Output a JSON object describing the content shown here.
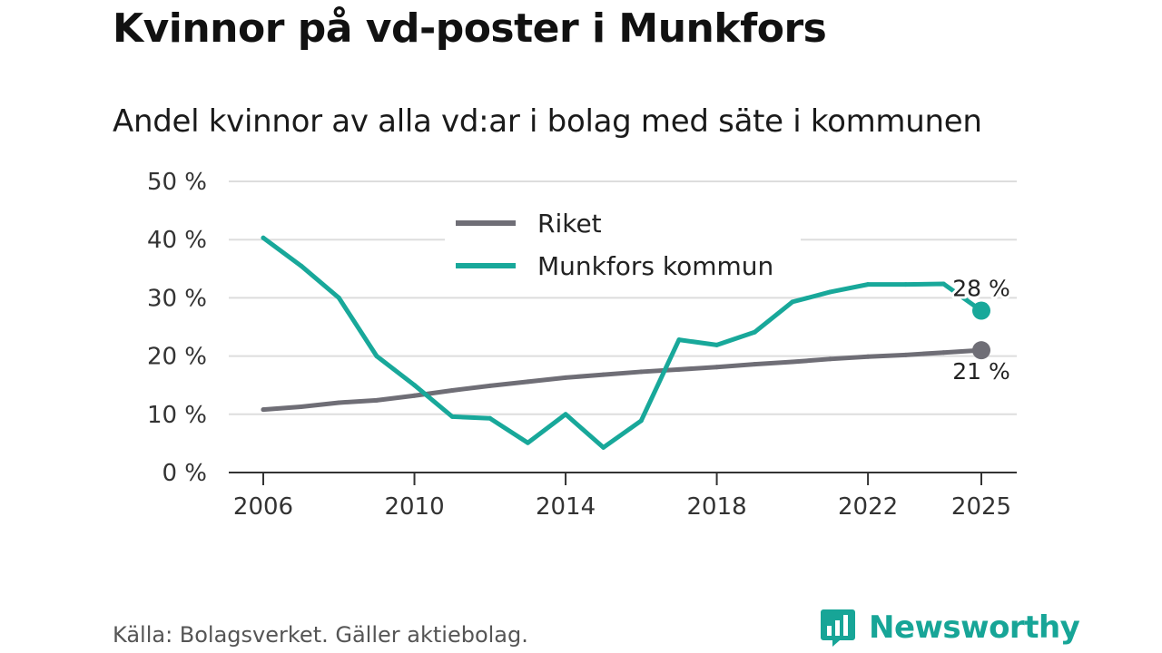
{
  "title": "Kvinnor på vd-poster i Munkfors",
  "subtitle": "Andel kvinnor av alla vd:ar i bolag med säte i kommunen",
  "source": "Källa: Bolagsverket. Gäller aktiebolag.",
  "brand": {
    "name": "Newsworthy",
    "logo_icon": "bar-chart-speech-bubble-icon"
  },
  "colors": {
    "riket": "#6f6e76",
    "munkfors": "#18a89a",
    "grid": "#dddddd",
    "axis": "#333333",
    "brand": "#17a597"
  },
  "chart_data": {
    "type": "line",
    "x": [
      2006,
      2007,
      2008,
      2009,
      2010,
      2011,
      2012,
      2013,
      2014,
      2015,
      2016,
      2017,
      2018,
      2019,
      2020,
      2021,
      2022,
      2023,
      2024,
      2025
    ],
    "series": [
      {
        "name": "Riket",
        "key": "riket",
        "values": [
          10.8,
          11.3,
          12.0,
          12.4,
          13.2,
          14.1,
          14.9,
          15.6,
          16.3,
          16.8,
          17.3,
          17.7,
          18.1,
          18.6,
          19.0,
          19.5,
          19.9,
          20.2,
          20.6,
          21.0
        ],
        "end_label": "21 %"
      },
      {
        "name": "Munkfors kommun",
        "key": "munkfors",
        "values": [
          40.3,
          35.5,
          30.0,
          20.0,
          15.0,
          9.6,
          9.3,
          5.1,
          10.0,
          4.3,
          8.9,
          22.8,
          21.9,
          24.1,
          29.3,
          31.0,
          32.3,
          32.3,
          32.4,
          27.8
        ],
        "end_label": "28 %"
      }
    ],
    "xticks": [
      2006,
      2010,
      2014,
      2018,
      2022,
      2025
    ],
    "xtick_labels": [
      "2006",
      "2010",
      "2014",
      "2018",
      "2022",
      "2025"
    ],
    "yticks": [
      0,
      10,
      20,
      30,
      40,
      50
    ],
    "ytick_labels": [
      "0 %",
      "10 %",
      "20 %",
      "30 %",
      "40 %",
      "50 %"
    ],
    "ylim": [
      0,
      50
    ],
    "xlim": [
      2006,
      2025
    ],
    "xlabel": "",
    "ylabel": "",
    "grid": true,
    "legend_position": "top-center"
  }
}
